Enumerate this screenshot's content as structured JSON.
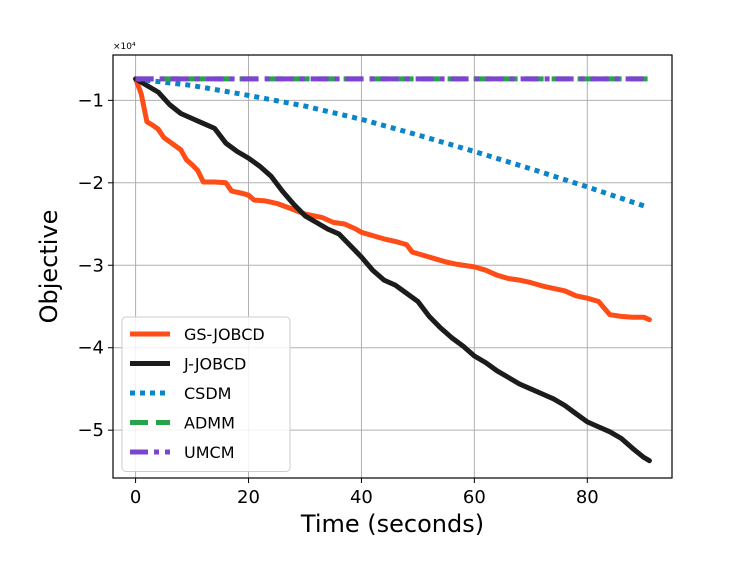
{
  "chart_data": {
    "type": "line",
    "title": "",
    "xlabel": "Time (seconds)",
    "ylabel": "Objective",
    "y_offset_label": "×10⁴",
    "xlim": [
      -4,
      95
    ],
    "ylim": [
      -5.58,
      -0.45
    ],
    "xticks": [
      0,
      20,
      40,
      60,
      80
    ],
    "yticks": [
      -1,
      -2,
      -3,
      -4,
      -5
    ],
    "xtick_labels": [
      "0",
      "20",
      "40",
      "60",
      "80"
    ],
    "ytick_labels": [
      "−1",
      "−2",
      "−3",
      "−4",
      "−5"
    ],
    "grid": true,
    "legend_position": "lower-left",
    "series": [
      {
        "name": "GS-JOBCD",
        "color": "#ff4d17",
        "dash": "solid",
        "x": [
          0,
          1,
          2,
          3,
          4,
          5,
          6,
          7,
          8,
          9,
          10,
          11,
          12,
          14,
          16,
          17,
          19,
          20,
          21,
          23,
          25,
          27,
          30,
          33,
          35,
          37,
          39,
          40,
          42,
          44,
          46,
          48,
          49,
          51,
          53,
          55,
          57,
          60,
          62,
          64,
          66,
          68,
          70,
          72,
          74,
          76,
          78,
          80,
          82,
          83,
          84,
          86,
          88,
          90,
          91
        ],
        "values": [
          -0.74,
          -0.92,
          -1.26,
          -1.3,
          -1.35,
          -1.45,
          -1.5,
          -1.55,
          -1.6,
          -1.72,
          -1.78,
          -1.85,
          -1.99,
          -1.99,
          -2.0,
          -2.1,
          -2.13,
          -2.15,
          -2.21,
          -2.22,
          -2.25,
          -2.3,
          -2.38,
          -2.42,
          -2.48,
          -2.5,
          -2.56,
          -2.6,
          -2.64,
          -2.68,
          -2.71,
          -2.75,
          -2.84,
          -2.88,
          -2.92,
          -2.96,
          -2.99,
          -3.02,
          -3.06,
          -3.12,
          -3.16,
          -3.18,
          -3.21,
          -3.25,
          -3.28,
          -3.31,
          -3.37,
          -3.4,
          -3.44,
          -3.52,
          -3.6,
          -3.62,
          -3.63,
          -3.63,
          -3.66
        ]
      },
      {
        "name": "J-JOBCD",
        "color": "#1c1c1c",
        "dash": "solid",
        "x": [
          0,
          2,
          4,
          6,
          8,
          10,
          12,
          14,
          16,
          18,
          20,
          22,
          24,
          26,
          28,
          30,
          32,
          34,
          36,
          38,
          40,
          42,
          44,
          46,
          48,
          50,
          52,
          54,
          56,
          58,
          60,
          62,
          64,
          66,
          68,
          70,
          72,
          74,
          76,
          78,
          80,
          82,
          84,
          86,
          88,
          90,
          91
        ],
        "values": [
          -0.74,
          -0.82,
          -0.9,
          -1.05,
          -1.16,
          -1.22,
          -1.28,
          -1.34,
          -1.52,
          -1.62,
          -1.7,
          -1.8,
          -1.92,
          -2.1,
          -2.26,
          -2.4,
          -2.48,
          -2.56,
          -2.62,
          -2.76,
          -2.9,
          -3.06,
          -3.18,
          -3.24,
          -3.34,
          -3.44,
          -3.62,
          -3.76,
          -3.88,
          -3.98,
          -4.1,
          -4.18,
          -4.28,
          -4.36,
          -4.44,
          -4.5,
          -4.56,
          -4.62,
          -4.7,
          -4.8,
          -4.9,
          -4.96,
          -5.02,
          -5.1,
          -5.22,
          -5.33,
          -5.37
        ]
      },
      {
        "name": "CSDM",
        "color": "#0a85c9",
        "dash": "dotted",
        "x": [
          0,
          10,
          20,
          30,
          40,
          50,
          60,
          70,
          80,
          90
        ],
        "values": [
          -0.74,
          -0.82,
          -0.94,
          -1.07,
          -1.23,
          -1.42,
          -1.62,
          -1.83,
          -2.05,
          -2.28
        ]
      },
      {
        "name": "ADMM",
        "color": "#27a349",
        "dash": "dashed",
        "x": [
          0,
          91
        ],
        "values": [
          -0.74,
          -0.74
        ]
      },
      {
        "name": "UMCM",
        "color": "#7d44cf",
        "dash": "dashdot",
        "x": [
          0,
          91
        ],
        "values": [
          -0.74,
          -0.74
        ]
      }
    ]
  }
}
